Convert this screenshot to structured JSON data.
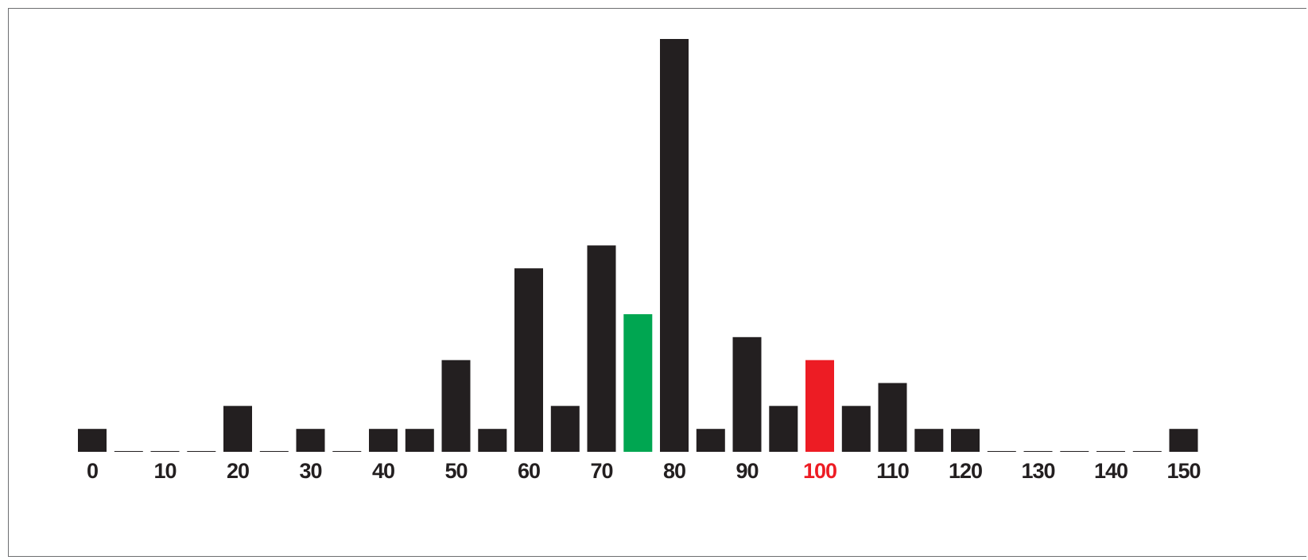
{
  "chart_data": {
    "type": "bar",
    "title": "",
    "xlabel": "",
    "ylabel": "",
    "x": [
      0,
      5,
      10,
      15,
      20,
      25,
      30,
      35,
      40,
      45,
      50,
      55,
      60,
      65,
      70,
      75,
      80,
      85,
      90,
      95,
      100,
      105,
      110,
      115,
      120,
      125,
      130,
      135,
      140,
      145,
      150
    ],
    "values": [
      1,
      0,
      0,
      0,
      2,
      0,
      1,
      0,
      1,
      1,
      4,
      1,
      8,
      2,
      9,
      6,
      18,
      1,
      5,
      2,
      4,
      2,
      3,
      1,
      1,
      0,
      0,
      0,
      0,
      0,
      1
    ],
    "tick_labels": [
      "0",
      "10",
      "20",
      "30",
      "40",
      "50",
      "60",
      "70",
      "80",
      "90",
      "100",
      "110",
      "120",
      "130",
      "140",
      "150"
    ],
    "tick_values": [
      0,
      10,
      20,
      30,
      40,
      50,
      60,
      70,
      80,
      90,
      100,
      110,
      120,
      130,
      140,
      150
    ],
    "highlight": [
      {
        "x": 75,
        "color": "#00a651"
      },
      {
        "x": 100,
        "color": "#ed1c24"
      }
    ],
    "highlight_label": {
      "x": 100,
      "color": "#ed1c24"
    },
    "ylim": [
      0,
      18
    ],
    "grid": false,
    "bar_color": "#231f20",
    "label_color": "#231f20"
  }
}
